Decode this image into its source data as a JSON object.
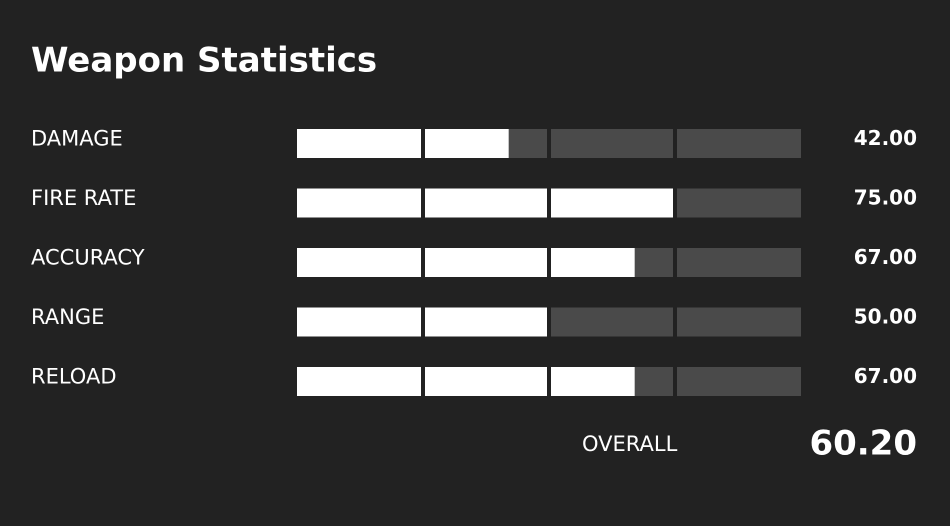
{
  "title": "Weapon Statistics",
  "xlim": [
    0,
    100
  ],
  "xticks": [
    0,
    25,
    50,
    75,
    100
  ],
  "stats": [
    {
      "name": "DAMAGE",
      "value": 42,
      "value_label": "42.00"
    },
    {
      "name": "FIRE RATE",
      "value": 75,
      "value_label": "75.00"
    },
    {
      "name": "ACCURACY",
      "value": 67,
      "value_label": "67.00"
    },
    {
      "name": "RANGE",
      "value": 50,
      "value_label": "50.00"
    },
    {
      "name": "RELOAD",
      "value": 67,
      "value_label": "67.00"
    }
  ],
  "overall": {
    "label": "OVERALL",
    "value": 60.2,
    "value_label": "60.20"
  }
}
